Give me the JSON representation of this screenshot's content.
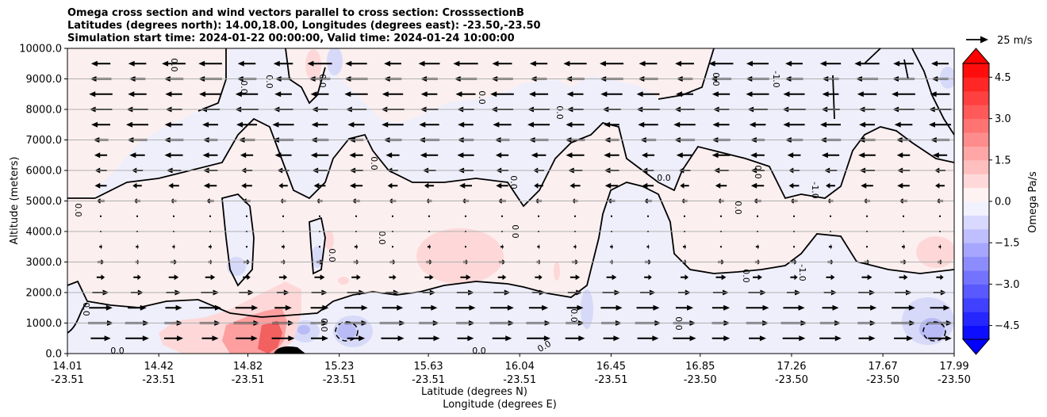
{
  "title_lines": [
    "Omega cross section and wind vectors parallel to cross section: CrosssectionB",
    "Latitudes (degrees north): 14.00,18.00, Longitudes (degrees east): -23.50,-23.50",
    "Simulation start time: 2024-01-22 00:00:00, Valid time: 2024-01-24 10:00:00"
  ],
  "quiver_key": {
    "label": "25 m/s"
  },
  "chart_data": {
    "type": "heatmap",
    "ylabel": "Altitude (meters)",
    "xlabel_lines": [
      "Latitude (degrees N)",
      "Longitude (degrees E)"
    ],
    "yticks": [
      "0.0",
      "1000.0",
      "2000.0",
      "3000.0",
      "4000.0",
      "5000.0",
      "6000.0",
      "7000.0",
      "8000.0",
      "9000.0",
      "10000.0"
    ],
    "ytick_values": [
      0,
      1000,
      2000,
      3000,
      4000,
      5000,
      6000,
      7000,
      8000,
      9000,
      10000
    ],
    "ylim": [
      0,
      10000
    ],
    "xlim": [
      14.01,
      17.99
    ],
    "xtick_lat": [
      "14.01",
      "14.42",
      "14.82",
      "15.23",
      "15.63",
      "16.04",
      "16.45",
      "16.85",
      "17.26",
      "17.67",
      "17.99"
    ],
    "xtick_lon": [
      "-23.51",
      "-23.51",
      "-23.51",
      "-23.51",
      "-23.51",
      "-23.51",
      "-23.51",
      "-23.50",
      "-23.50",
      "-23.50",
      "-23.50"
    ],
    "xtick_values": [
      14.01,
      14.42,
      14.82,
      15.23,
      15.63,
      16.04,
      16.45,
      16.85,
      17.26,
      17.67,
      17.99
    ],
    "grid": "horizontal",
    "colorbar": {
      "label": "Omega Pa/s",
      "ticks": [
        "4.5",
        "3.0",
        "1.5",
        "0.0",
        "−1.5",
        "−3.0",
        "−4.5"
      ],
      "tick_values": [
        4.5,
        3.0,
        1.5,
        0.0,
        -1.5,
        -3.0,
        -4.5
      ],
      "range": [
        -5,
        5
      ],
      "extend": "both",
      "colormap": "bwr"
    },
    "contour_labels": [
      "0.0",
      "0.0",
      "0.0",
      "0.0",
      "0.0",
      "0.0",
      "0.0",
      "0.0",
      "0.0",
      "0.0",
      "0.0",
      "0.0",
      "0.0",
      "0.0",
      "0.0",
      "0.0",
      "0.0",
      "0.0",
      "0.0",
      "0.0",
      "0.0",
      "0.0",
      "0.0",
      "0.0",
      "-1.0",
      "-1.0",
      "-1.0"
    ],
    "wind_vectors": {
      "levels_m": [
        500,
        1000,
        1500,
        2000,
        2500,
        3000,
        3500,
        4000,
        4500,
        5000,
        5500,
        6000,
        6500,
        7000,
        7500,
        8000,
        8500,
        9000,
        9500
      ],
      "u_ms": [
        18,
        20,
        18,
        14,
        8,
        6,
        3,
        2,
        -2,
        -6,
        -10,
        -12,
        -14,
        -16,
        -17,
        -18,
        -18,
        -18,
        -19
      ]
    }
  }
}
